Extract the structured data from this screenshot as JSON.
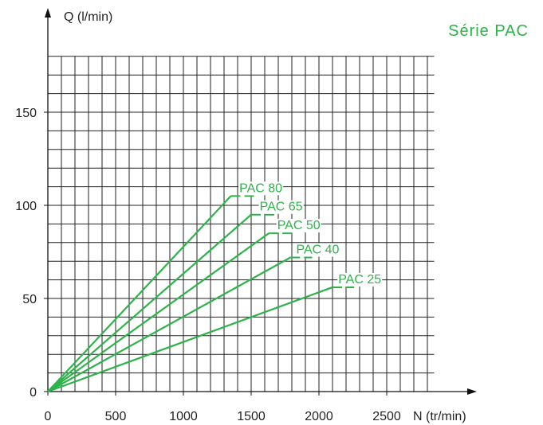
{
  "chart_data": {
    "type": "line",
    "title": "Série PAC",
    "xlabel": "N (tr/min)",
    "ylabel": "Q (l/min)",
    "xlim": [
      0,
      2850
    ],
    "ylim": [
      0,
      180
    ],
    "x_ticks": [
      "0",
      "500",
      "1000",
      "1500",
      "2000",
      "2500"
    ],
    "y_ticks": [
      "0",
      "50",
      "100",
      "150"
    ],
    "grid": true,
    "line_color": "#2db34a",
    "series": [
      {
        "name": "PAC 80",
        "points": [
          [
            0,
            0
          ],
          [
            1350,
            105
          ]
        ],
        "dash_end": 1530
      },
      {
        "name": "PAC 65",
        "points": [
          [
            0,
            0
          ],
          [
            1500,
            95
          ]
        ],
        "dash_end": 1680
      },
      {
        "name": "PAC 50",
        "points": [
          [
            0,
            0
          ],
          [
            1630,
            85
          ]
        ],
        "dash_end": 1810
      },
      {
        "name": "PAC 40",
        "points": [
          [
            0,
            0
          ],
          [
            1790,
            72
          ]
        ],
        "dash_end": 1950
      },
      {
        "name": "PAC 25",
        "points": [
          [
            0,
            0
          ],
          [
            2100,
            56
          ]
        ],
        "dash_end": 2260
      }
    ]
  }
}
